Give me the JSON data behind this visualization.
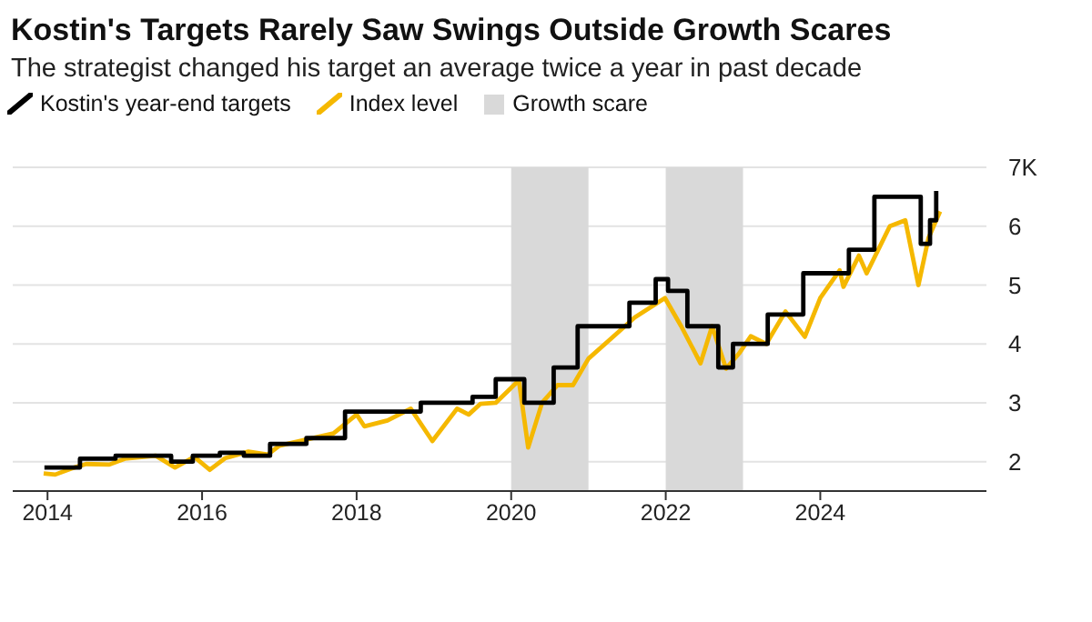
{
  "chart_data": {
    "type": "line",
    "title": "Kostin's Targets Rarely Saw Swings Outside Growth Scares",
    "subtitle": "The strategist changed his target an average twice a year in past decade",
    "xlim": [
      2013.55,
      2026.15
    ],
    "xticks": [
      2014,
      2016,
      2018,
      2020,
      2022,
      2024
    ],
    "ylim": [
      1.5,
      7
    ],
    "yticks": [
      2,
      3,
      4,
      5,
      6,
      {
        "value": 7,
        "label": "7K"
      }
    ],
    "grid": "y",
    "legend": "top left",
    "marker": "none",
    "bands": [
      {
        "axis": "x",
        "from": 2020.0,
        "to": 2021.0,
        "label": "Growth scare",
        "color": "#d9d9d9"
      },
      {
        "axis": "x",
        "from": 2022.0,
        "to": 2023.0,
        "color": "#d9d9d9"
      }
    ],
    "series": [
      {
        "name": "Index level",
        "type": "line",
        "color": "#f5b800",
        "x": [
          2013.95,
          2014.1,
          2014.3,
          2014.5,
          2014.8,
          2015.0,
          2015.4,
          2015.65,
          2015.9,
          2016.1,
          2016.3,
          2016.6,
          2016.85,
          2017.0,
          2017.4,
          2017.7,
          2018.0,
          2018.1,
          2018.4,
          2018.7,
          2018.98,
          2019.3,
          2019.45,
          2019.6,
          2019.8,
          2020.1,
          2020.22,
          2020.4,
          2020.6,
          2020.8,
          2021.0,
          2021.3,
          2021.6,
          2021.99,
          2022.2,
          2022.45,
          2022.6,
          2022.78,
          2022.95,
          2023.1,
          2023.3,
          2023.55,
          2023.8,
          2024.0,
          2024.25,
          2024.3,
          2024.5,
          2024.6,
          2024.9,
          2025.1,
          2025.27,
          2025.4,
          2025.55
        ],
        "values": [
          1.8,
          1.78,
          1.88,
          1.96,
          1.95,
          2.05,
          2.1,
          1.9,
          2.08,
          1.86,
          2.06,
          2.17,
          2.12,
          2.27,
          2.39,
          2.48,
          2.8,
          2.6,
          2.7,
          2.9,
          2.35,
          2.9,
          2.8,
          2.98,
          3.0,
          3.38,
          2.24,
          3.0,
          3.3,
          3.3,
          3.75,
          4.1,
          4.45,
          4.78,
          4.3,
          3.67,
          4.3,
          3.58,
          3.84,
          4.13,
          4.0,
          4.55,
          4.12,
          4.78,
          5.25,
          4.97,
          5.5,
          5.2,
          6.0,
          6.1,
          5.0,
          5.8,
          6.25
        ]
      },
      {
        "name": "Kostin's year-end targets",
        "type": "step",
        "color": "#000000",
        "x": [
          2013.96,
          2014.42,
          2014.88,
          2015.6,
          2015.88,
          2016.23,
          2016.54,
          2016.88,
          2017.35,
          2017.85,
          2018.83,
          2019.5,
          2019.8,
          2020.17,
          2020.55,
          2020.86,
          2021.53,
          2021.87,
          2022.03,
          2022.28,
          2022.68,
          2022.87,
          2023.32,
          2023.78,
          2024.37,
          2024.7,
          2025.15,
          2025.3,
          2025.42,
          2025.5
        ],
        "values": [
          1.9,
          2.05,
          2.1,
          2.0,
          2.1,
          2.15,
          2.1,
          2.3,
          2.4,
          2.85,
          3.0,
          3.1,
          3.4,
          3.0,
          3.6,
          4.3,
          4.7,
          5.1,
          4.9,
          4.3,
          3.6,
          4.0,
          4.5,
          5.2,
          5.6,
          6.5,
          6.5,
          5.7,
          6.1,
          6.6
        ]
      }
    ]
  }
}
